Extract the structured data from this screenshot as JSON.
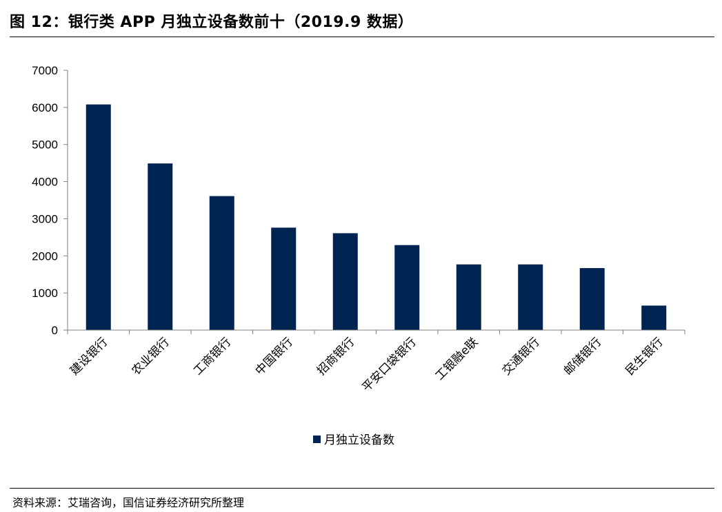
{
  "figure": {
    "title": "图 12：银行类 APP 月独立设备数前十（2019.9 数据）",
    "source": "资料来源：艾瑞咨询，国信证券经济研究所整理"
  },
  "chart_data": {
    "type": "bar",
    "categories": [
      "建设银行",
      "农业银行",
      "工商银行",
      "中国银行",
      "招商银行",
      "平安口袋银行",
      "工银融e联",
      "交通银行",
      "邮储银行",
      "民生银行"
    ],
    "series": [
      {
        "name": "月独立设备数",
        "values": [
          6080,
          4490,
          3610,
          2760,
          2610,
          2290,
          1770,
          1770,
          1670,
          660
        ],
        "color": "#002451"
      }
    ],
    "ylim": [
      0,
      7000
    ],
    "yticks": [
      0,
      1000,
      2000,
      3000,
      4000,
      5000,
      6000,
      7000
    ],
    "grid": false,
    "legend": "bottom-center"
  }
}
